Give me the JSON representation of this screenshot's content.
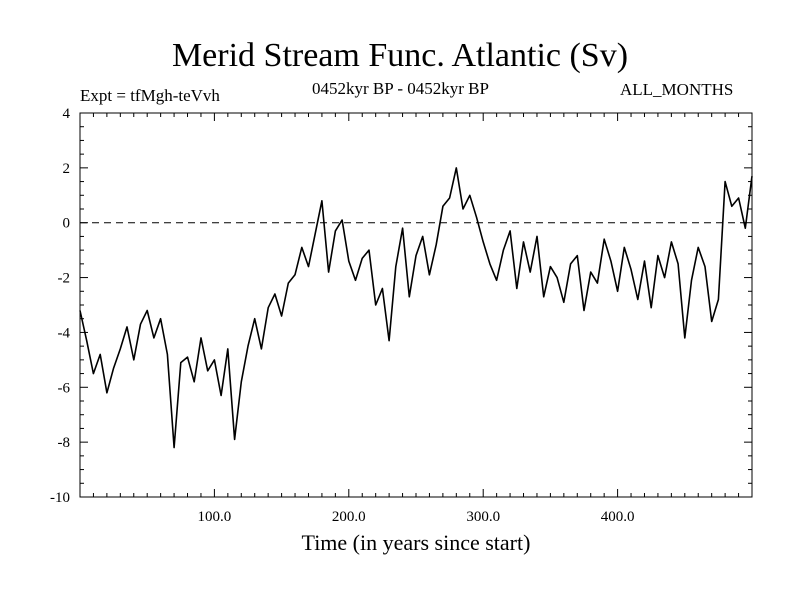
{
  "chart_data": {
    "type": "line",
    "title": "Merid Stream Func. Atlantic (Sv)",
    "subtitle_left": "Expt = tfMgh-teVvh",
    "subtitle_center": "0452kyr BP - 0452kyr BP",
    "subtitle_right": "ALL_MONTHS",
    "xlabel": "Time (in years since start)",
    "ylabel": "",
    "xlim": [
      0,
      500
    ],
    "ylim": [
      -10,
      4
    ],
    "xticks": [
      100,
      200,
      300,
      400
    ],
    "xtick_labels": [
      "100.0",
      "200.0",
      "300.0",
      "400.0"
    ],
    "yticks": [
      -10,
      -8,
      -6,
      -4,
      -2,
      0,
      2,
      4
    ],
    "ytick_labels": [
      "-10",
      "-8",
      "-6",
      "-4",
      "-2",
      "0",
      "2",
      "4"
    ],
    "reference_line": {
      "y": 0,
      "style": "dashed"
    },
    "grid": false,
    "series": [
      {
        "x": [
          0,
          5,
          10,
          15,
          20,
          25,
          30,
          35,
          40,
          45,
          50,
          55,
          60,
          65,
          70,
          75,
          80,
          85,
          90,
          95,
          100,
          105,
          110,
          115,
          120,
          125,
          130,
          135,
          140,
          145,
          150,
          155,
          160,
          165,
          170,
          175,
          180,
          185,
          190,
          195,
          200,
          205,
          210,
          215,
          220,
          225,
          230,
          235,
          240,
          245,
          250,
          255,
          260,
          265,
          270,
          275,
          280,
          285,
          290,
          295,
          300,
          305,
          310,
          315,
          320,
          325,
          330,
          335,
          340,
          345,
          350,
          355,
          360,
          365,
          370,
          375,
          380,
          385,
          390,
          395,
          400,
          405,
          410,
          415,
          420,
          425,
          430,
          435,
          440,
          445,
          450,
          455,
          460,
          465,
          470,
          475,
          480,
          485,
          490,
          495,
          500
        ],
        "values": [
          -3.2,
          -4.3,
          -5.5,
          -4.8,
          -6.2,
          -5.3,
          -4.6,
          -3.8,
          -5.0,
          -3.7,
          -3.2,
          -4.2,
          -3.5,
          -4.8,
          -8.2,
          -5.1,
          -4.9,
          -5.8,
          -4.2,
          -5.4,
          -5.0,
          -6.3,
          -4.6,
          -7.9,
          -5.8,
          -4.5,
          -3.5,
          -4.6,
          -3.1,
          -2.6,
          -3.4,
          -2.2,
          -1.9,
          -0.9,
          -1.6,
          -0.4,
          0.8,
          -1.8,
          -0.3,
          0.1,
          -1.4,
          -2.1,
          -1.3,
          -1.0,
          -3.0,
          -2.4,
          -4.3,
          -1.6,
          -0.2,
          -2.7,
          -1.2,
          -0.5,
          -1.9,
          -0.8,
          0.6,
          0.9,
          2.0,
          0.5,
          1.0,
          0.2,
          -0.7,
          -1.5,
          -2.1,
          -1.0,
          -0.3,
          -2.4,
          -0.7,
          -1.8,
          -0.5,
          -2.7,
          -1.6,
          -2.0,
          -2.9,
          -1.5,
          -1.2,
          -3.2,
          -1.8,
          -2.2,
          -0.6,
          -1.4,
          -2.5,
          -0.9,
          -1.7,
          -2.8,
          -1.4,
          -3.1,
          -1.2,
          -2.0,
          -0.7,
          -1.5,
          -4.2,
          -2.1,
          -0.9,
          -1.6,
          -3.6,
          -2.8,
          1.5,
          0.6,
          0.9,
          -0.2,
          1.7
        ]
      }
    ]
  }
}
